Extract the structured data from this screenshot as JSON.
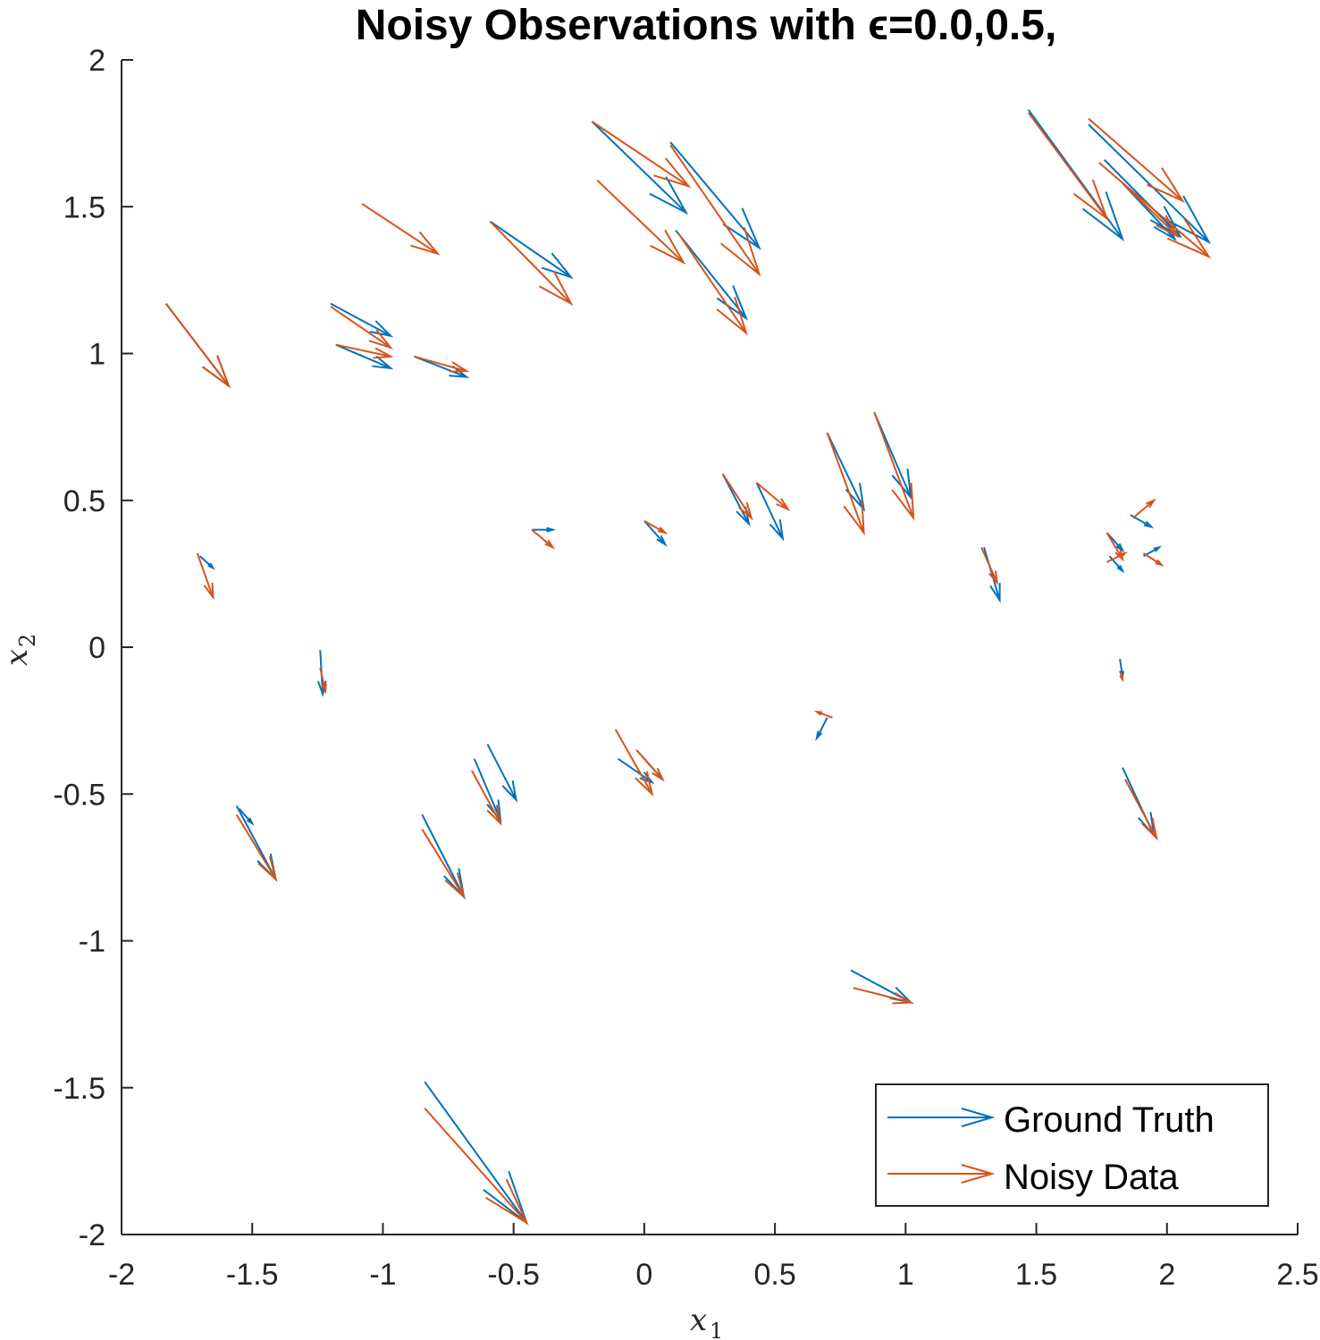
{
  "chart_data": {
    "type": "quiver",
    "title": "Noisy Observations with ϵ=0.0,0.5,",
    "xlabel": "x",
    "xlabel_sub": "1",
    "ylabel": "x",
    "ylabel_sub": "2",
    "xlim": [
      -2,
      2.5
    ],
    "ylim": [
      -2,
      2
    ],
    "xticks": [
      -2,
      -1.5,
      -1,
      -0.5,
      0,
      0.5,
      1,
      1.5,
      2,
      2.5
    ],
    "xtick_labels": [
      "-2",
      "-1.5",
      "-1",
      "-0.5",
      "0",
      "0.5",
      "1",
      "1.5",
      "2",
      "2.5"
    ],
    "yticks": [
      -2,
      -1.5,
      -1,
      -0.5,
      0,
      0.5,
      1,
      1.5,
      2
    ],
    "ytick_labels": [
      "-2",
      "-1.5",
      "-1",
      "-0.5",
      "0",
      "0.5",
      "1",
      "1.5",
      "2"
    ],
    "grid": false,
    "legend_position": "bottom-right",
    "series": [
      {
        "name": "Ground Truth",
        "color": "#0072BD",
        "arrows": [
          [
            -0.2,
            1.79,
            0.16,
            1.48
          ],
          [
            0.1,
            1.72,
            0.44,
            1.36
          ],
          [
            -0.59,
            1.45,
            -0.28,
            1.26
          ],
          [
            0.12,
            1.42,
            0.39,
            1.12
          ],
          [
            -1.2,
            1.17,
            -0.97,
            1.06
          ],
          [
            -1.18,
            1.03,
            -0.97,
            0.95
          ],
          [
            -0.88,
            0.99,
            -0.68,
            0.92
          ],
          [
            -1.83,
            1.17,
            -1.59,
            0.89
          ],
          [
            1.47,
            1.83,
            1.83,
            1.39
          ],
          [
            1.7,
            1.78,
            2.16,
            1.38
          ],
          [
            1.76,
            1.66,
            2.05,
            1.4
          ],
          [
            1.83,
            1.58,
            2.03,
            1.39
          ],
          [
            0.3,
            0.59,
            0.4,
            0.42
          ],
          [
            0.43,
            0.56,
            0.53,
            0.37
          ],
          [
            0.7,
            0.73,
            0.84,
            0.47
          ],
          [
            0.88,
            0.8,
            1.02,
            0.51
          ],
          [
            -0.43,
            0.4,
            -0.35,
            0.4
          ],
          [
            0.0,
            0.43,
            0.08,
            0.35
          ],
          [
            -1.7,
            0.31,
            -1.65,
            0.27
          ],
          [
            1.3,
            0.34,
            1.36,
            0.16
          ],
          [
            1.77,
            0.39,
            1.83,
            0.33
          ],
          [
            1.78,
            0.31,
            1.83,
            0.26
          ],
          [
            1.86,
            0.45,
            1.94,
            0.41
          ],
          [
            1.91,
            0.31,
            1.97,
            0.34
          ],
          [
            -1.24,
            -0.01,
            -1.23,
            -0.16
          ],
          [
            1.82,
            -0.04,
            1.83,
            -0.1
          ],
          [
            0.7,
            -0.24,
            0.66,
            -0.31
          ],
          [
            -1.56,
            -0.54,
            -1.41,
            -0.79
          ],
          [
            -1.55,
            -0.55,
            -1.5,
            -0.6
          ],
          [
            -0.85,
            -0.57,
            -0.69,
            -0.85
          ],
          [
            -0.65,
            -0.38,
            -0.55,
            -0.59
          ],
          [
            -0.6,
            -0.33,
            -0.49,
            -0.52
          ],
          [
            -0.1,
            -0.38,
            0.03,
            -0.46
          ],
          [
            -0.01,
            -0.37,
            0.07,
            -0.45
          ],
          [
            1.83,
            -0.41,
            1.95,
            -0.64
          ],
          [
            0.79,
            -1.1,
            1.02,
            -1.21
          ],
          [
            -0.84,
            -1.48,
            -0.45,
            -1.96
          ]
        ]
      },
      {
        "name": "Noisy Data",
        "color": "#D95319",
        "arrows": [
          [
            -0.2,
            1.79,
            0.17,
            1.57
          ],
          [
            0.1,
            1.71,
            0.44,
            1.27
          ],
          [
            -0.18,
            1.59,
            0.15,
            1.31
          ],
          [
            -1.08,
            1.51,
            -0.79,
            1.34
          ],
          [
            -0.59,
            1.45,
            -0.28,
            1.17
          ],
          [
            0.13,
            1.41,
            0.39,
            1.07
          ],
          [
            -1.2,
            1.16,
            -0.97,
            1.02
          ],
          [
            -1.18,
            1.03,
            -0.97,
            0.99
          ],
          [
            -0.88,
            0.99,
            -0.68,
            0.94
          ],
          [
            -1.83,
            1.17,
            -1.59,
            0.89
          ],
          [
            1.47,
            1.82,
            1.77,
            1.46
          ],
          [
            1.7,
            1.8,
            2.06,
            1.52
          ],
          [
            1.74,
            1.65,
            2.16,
            1.33
          ],
          [
            1.83,
            1.58,
            2.04,
            1.4
          ],
          [
            0.3,
            0.59,
            0.41,
            0.44
          ],
          [
            0.43,
            0.56,
            0.55,
            0.47
          ],
          [
            0.7,
            0.73,
            0.84,
            0.39
          ],
          [
            0.88,
            0.8,
            1.03,
            0.44
          ],
          [
            -0.43,
            0.4,
            -0.35,
            0.34
          ],
          [
            0.0,
            0.43,
            0.08,
            0.39
          ],
          [
            -1.71,
            0.32,
            -1.65,
            0.17
          ],
          [
            1.29,
            0.34,
            1.35,
            0.22
          ],
          [
            1.77,
            0.39,
            1.83,
            0.3
          ],
          [
            1.77,
            0.29,
            1.84,
            0.32
          ],
          [
            1.87,
            0.44,
            1.95,
            0.5
          ],
          [
            1.91,
            0.32,
            1.98,
            0.28
          ],
          [
            -1.24,
            -0.07,
            -1.22,
            -0.15
          ],
          [
            1.82,
            -0.08,
            1.83,
            -0.11
          ],
          [
            0.72,
            -0.24,
            0.66,
            -0.22
          ],
          [
            -1.56,
            -0.57,
            -1.41,
            -0.79
          ],
          [
            -0.85,
            -0.62,
            -0.69,
            -0.85
          ],
          [
            -0.66,
            -0.42,
            -0.55,
            -0.6
          ],
          [
            -0.11,
            -0.28,
            0.03,
            -0.5
          ],
          [
            -0.03,
            -0.35,
            0.07,
            -0.45
          ],
          [
            1.84,
            -0.45,
            1.96,
            -0.65
          ],
          [
            0.8,
            -1.16,
            1.02,
            -1.21
          ],
          [
            -0.84,
            -1.57,
            -0.45,
            -1.96
          ]
        ]
      }
    ]
  }
}
